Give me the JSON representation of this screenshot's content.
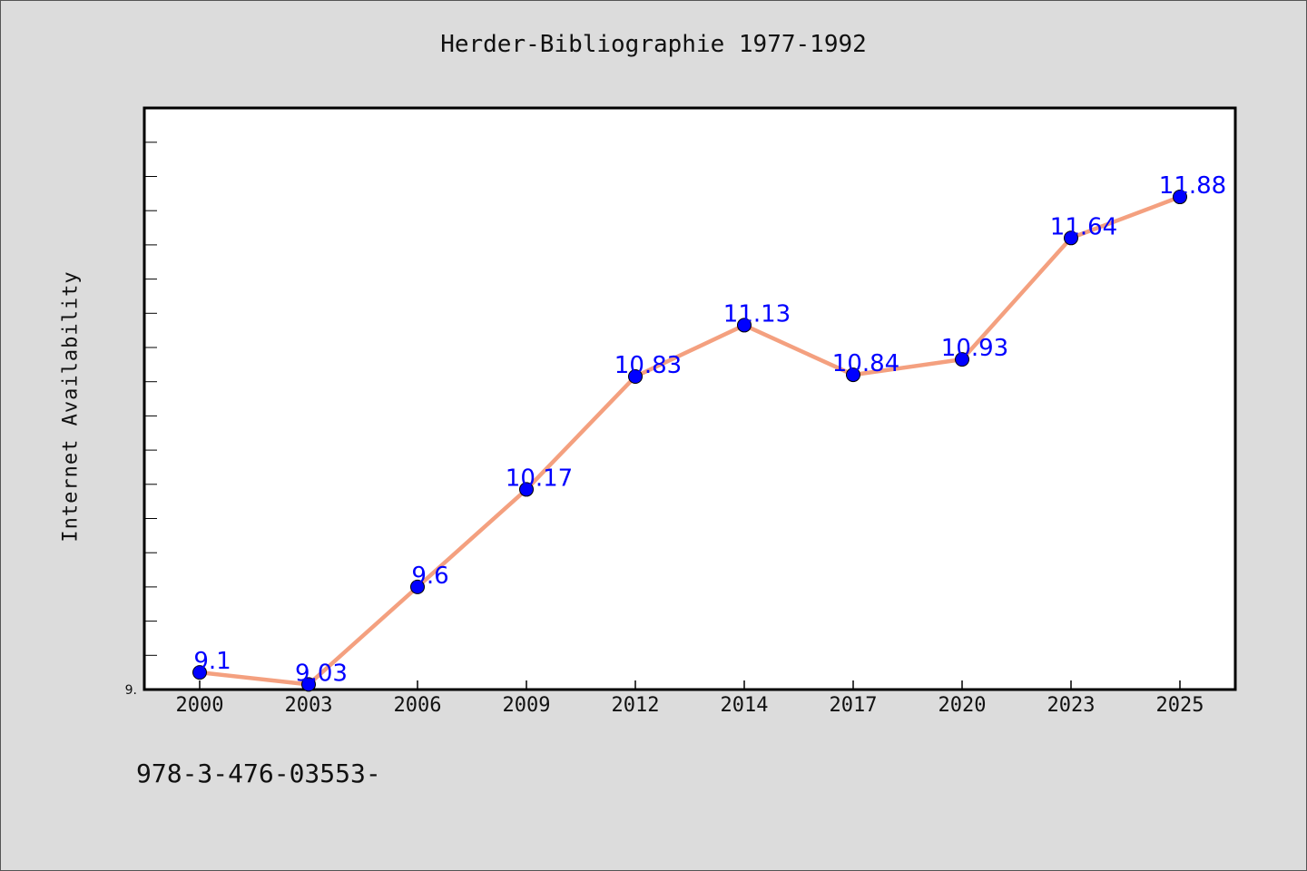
{
  "chart_data": {
    "type": "line",
    "title": "Herder-Bibliographie 1977-1992",
    "xlabel": "",
    "ylabel": "Internet Availability",
    "categories": [
      "2000",
      "2003",
      "2006",
      "2009",
      "2012",
      "2014",
      "2017",
      "2020",
      "2023",
      "2025"
    ],
    "series": [
      {
        "values": [
          9.1,
          9.03,
          9.6,
          10.17,
          10.83,
          11.13,
          10.84,
          10.93,
          11.64,
          11.88
        ],
        "data_labels": [
          "9.1",
          "9.03",
          "9.6",
          "10.17",
          "10.83",
          "11.13",
          "10.84",
          "10.93",
          "11.64",
          "11.88"
        ],
        "line_color": "#f4a07f",
        "marker_color": "#0000ff"
      }
    ],
    "ylim": [
      9.0,
      12.4
    ],
    "ytick_labels": [
      "9."
    ],
    "grid": false,
    "legend": "none"
  },
  "footnote": "978-3-476-03553-",
  "colors": {
    "background": "#dcdcdc",
    "plot_background": "#ffffff",
    "line": "#f4a07f",
    "marker": "#0000ff",
    "data_label": "#0000ff"
  }
}
